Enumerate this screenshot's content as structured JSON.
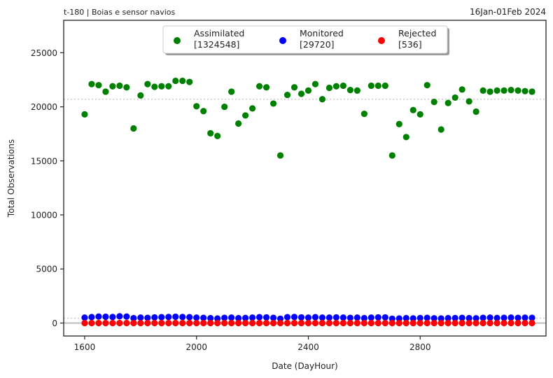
{
  "chart_data": {
    "type": "scatter",
    "title_left": "t-180  |  Boias e sensor navios",
    "title_right": "16Jan-01Feb 2024",
    "xlabel": "Date (DayHour)",
    "ylabel": "Total Observations",
    "xlim": [
      1525,
      3250
    ],
    "ylim": [
      -1200,
      28000
    ],
    "xticks": [
      1600,
      2000,
      2400,
      2800
    ],
    "xtick_labels": [
      "1600",
      "2000",
      "2400",
      "2800"
    ],
    "yticks": [
      0,
      5000,
      10000,
      15000,
      20000,
      25000
    ],
    "ytick_labels": [
      "0",
      "5000",
      "10000",
      "15000",
      "20000",
      "25000"
    ],
    "hlines": [
      20700,
      450,
      0
    ],
    "x": [
      1600,
      1625,
      1650,
      1675,
      1700,
      1725,
      1750,
      1775,
      1800,
      1825,
      1850,
      1875,
      1900,
      1925,
      1950,
      1975,
      2000,
      2025,
      2050,
      2075,
      2100,
      2125,
      2150,
      2175,
      2200,
      2225,
      2250,
      2275,
      2300,
      2325,
      2350,
      2375,
      2400,
      2425,
      2450,
      2475,
      2500,
      2525,
      2550,
      2575,
      2600,
      2625,
      2650,
      2675,
      2700,
      2725,
      2750,
      2775,
      2800,
      2825,
      2850,
      2875,
      2900,
      2925,
      2950,
      2975,
      3000,
      3025,
      3050,
      3075,
      3100,
      3125,
      3150,
      3175,
      3200
    ],
    "series": [
      {
        "name": "Assimilated",
        "count_label": "[1324548]",
        "color": "#008000",
        "values": [
          19300,
          22100,
          22000,
          21400,
          21900,
          21950,
          21800,
          18000,
          21050,
          22100,
          21850,
          21900,
          21900,
          22400,
          22400,
          22300,
          20050,
          19600,
          17550,
          17300,
          20000,
          21400,
          18450,
          19200,
          19850,
          21900,
          21800,
          20300,
          15500,
          21100,
          21800,
          21200,
          21500,
          22100,
          20700,
          21750,
          21900,
          21950,
          21550,
          21500,
          19350,
          21950,
          21950,
          21950,
          15500,
          18400,
          17200,
          19700,
          19300,
          22000,
          20450,
          17900,
          20350,
          20850,
          21600,
          20500,
          19550,
          21500,
          21400,
          21500,
          21500,
          21550,
          21500,
          21450,
          21400
        ]
      },
      {
        "name": "Monitored",
        "count_label": "[29720]",
        "color": "#0000ff",
        "values": [
          500,
          550,
          600,
          580,
          560,
          620,
          600,
          450,
          500,
          480,
          520,
          540,
          560,
          580,
          560,
          540,
          500,
          480,
          450,
          420,
          480,
          500,
          450,
          470,
          500,
          540,
          520,
          480,
          400,
          540,
          560,
          520,
          500,
          540,
          500,
          500,
          520,
          500,
          480,
          500,
          450,
          500,
          520,
          520,
          400,
          420,
          450,
          430,
          460,
          480,
          440,
          420,
          450,
          460,
          480,
          450,
          440,
          480,
          500,
          470,
          480,
          500,
          480,
          490,
          480
        ]
      },
      {
        "name": "Rejected",
        "count_label": "[536]",
        "color": "#ff0000",
        "values": [
          0,
          0,
          0,
          0,
          0,
          0,
          0,
          0,
          0,
          0,
          0,
          0,
          0,
          0,
          0,
          0,
          0,
          0,
          0,
          0,
          0,
          0,
          0,
          0,
          0,
          0,
          0,
          0,
          0,
          0,
          0,
          0,
          0,
          0,
          0,
          0,
          0,
          0,
          0,
          0,
          0,
          0,
          0,
          0,
          0,
          0,
          0,
          0,
          0,
          0,
          0,
          0,
          0,
          0,
          0,
          0,
          0,
          0,
          0,
          0,
          0,
          0,
          0,
          0,
          0
        ]
      }
    ]
  }
}
